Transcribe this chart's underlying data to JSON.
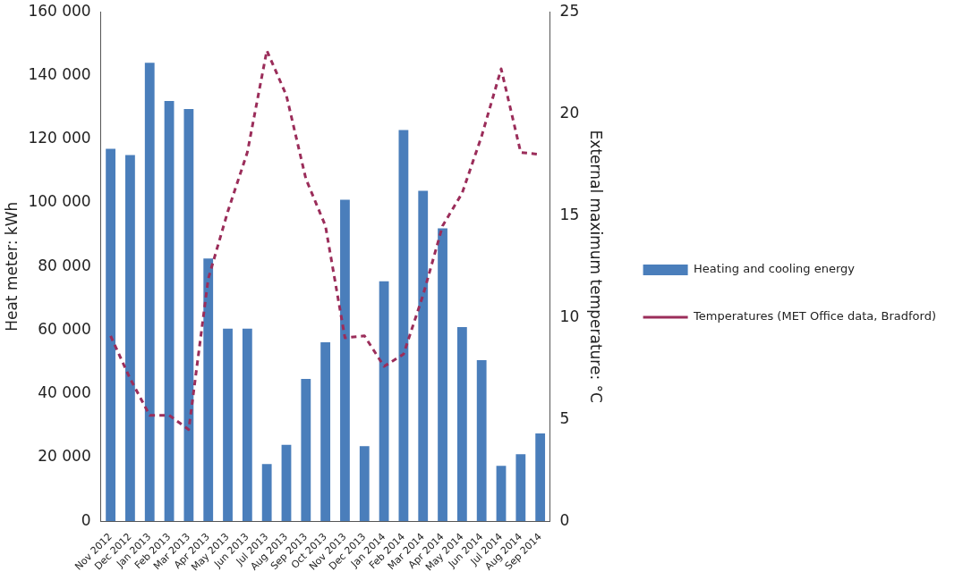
{
  "chart_data": {
    "type": "bar",
    "ylabel": "Heat meter: kWh",
    "y2label": "External maximum temperature: °C",
    "categories": [
      "Nov 2012",
      "Dec 2012",
      "Jan 2013",
      "Feb 2013",
      "Mar 2013",
      "Apr 2013",
      "May 2013",
      "Jun 2013",
      "Jul 2013",
      "Aug 2013",
      "Sep 2013",
      "Oct 2013",
      "Nov 2013",
      "Dec 2013",
      "Jan 2014",
      "Feb 2014",
      "Mar 2014",
      "Apr 2014",
      "May 2014",
      "Jun 2014",
      "Jul 2014",
      "Aug 2014",
      "Sep 2014"
    ],
    "series": [
      {
        "name": "Heating and cooling energy",
        "color": "#4a7ebb",
        "values": [
          117000,
          115000,
          144000,
          132000,
          129500,
          82500,
          60500,
          60500,
          18000,
          24000,
          44700,
          56200,
          101000,
          23600,
          75400,
          122900,
          103800,
          92000,
          61000,
          50600,
          17400,
          21100,
          27600
        ]
      },
      {
        "name": "Temperatures (MET Office data, Bradford)",
        "type": "line",
        "axis": "y2",
        "color": "#9b2d5a",
        "line_style": "dashed",
        "marker": "none",
        "values": [
          9.1,
          7.0,
          5.2,
          5.2,
          4.5,
          11.9,
          15.2,
          18.1,
          23.1,
          20.9,
          16.8,
          14.5,
          9.0,
          9.1,
          7.6,
          8.2,
          11.1,
          14.5,
          16.1,
          18.9,
          22.2,
          18.1,
          18.0
        ]
      }
    ],
    "ylim": [
      0,
      160000
    ],
    "yticks": [
      {
        "value": 0,
        "label": "0"
      },
      {
        "value": 20000,
        "label": "20 000"
      },
      {
        "value": 40000,
        "label": "40 000"
      },
      {
        "value": 60000,
        "label": "60 000"
      },
      {
        "value": 80000,
        "label": "80 000"
      },
      {
        "value": 100000,
        "label": "100 000"
      },
      {
        "value": 120000,
        "label": "120 000"
      },
      {
        "value": 140000,
        "label": "140 000"
      },
      {
        "value": 160000,
        "label": "160 000"
      }
    ],
    "y2lim": [
      0,
      25
    ],
    "y2ticks": [
      0,
      5,
      10,
      15,
      20,
      25
    ],
    "grid": false,
    "legend": "right"
  }
}
